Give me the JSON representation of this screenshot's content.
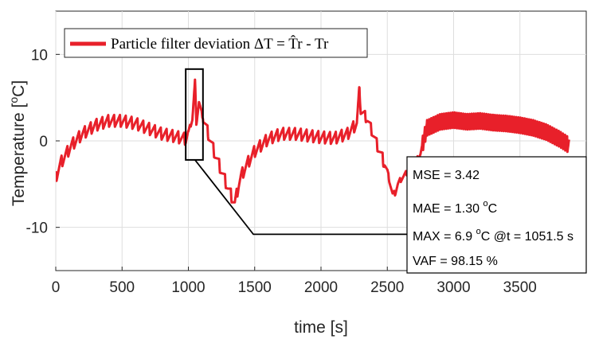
{
  "chart_data": {
    "type": "line",
    "title": "",
    "xlabel": "time [s]",
    "ylabel": "Temperature [",
    "ylabel_unit": "C]",
    "degree_symbol": "o",
    "xlim": [
      0,
      4000
    ],
    "ylim": [
      -15,
      15
    ],
    "xticks": [
      "0",
      "500",
      "1000",
      "1500",
      "2000",
      "2500",
      "3000",
      "3500"
    ],
    "xtick_values": [
      0,
      500,
      1000,
      1500,
      2000,
      2500,
      3000,
      3500
    ],
    "yticks": [
      "10",
      "0",
      "-10"
    ],
    "ytick_values": [
      10,
      0,
      -10
    ],
    "grid": true,
    "series": [
      {
        "name": "Particle filter deviation ΔT = T̂r - Tr",
        "color": "#e8202a",
        "x": [
          0,
          40,
          80,
          120,
          200,
          300,
          400,
          500,
          600,
          700,
          800,
          900,
          980,
          1000,
          1030,
          1050,
          1060,
          1080,
          1100,
          1150,
          1200,
          1250,
          1300,
          1350,
          1380,
          1400,
          1450,
          1500,
          1600,
          1700,
          1800,
          1900,
          2000,
          2100,
          2200,
          2270,
          2290,
          2300,
          2350,
          2400,
          2450,
          2500,
          2540,
          2560,
          2580,
          2600,
          2640,
          2700,
          2750,
          2780,
          2800,
          2900,
          3000,
          3100,
          3200,
          3300,
          3400,
          3500,
          3600,
          3700,
          3800,
          3870
        ],
        "y": [
          -4.2,
          -2.5,
          -1.5,
          -0.5,
          0.8,
          1.8,
          2.3,
          2.3,
          2.0,
          1.4,
          0.8,
          0.5,
          0.2,
          1.0,
          2.5,
          6.9,
          2.0,
          4.5,
          3.2,
          0.8,
          -1.5,
          -3.5,
          -5.5,
          -7.3,
          -5.0,
          -4.0,
          -2.5,
          -1.2,
          0.2,
          0.8,
          0.8,
          0.6,
          0.4,
          0.3,
          0.8,
          2.0,
          6.0,
          3.5,
          2.5,
          0.5,
          -1.5,
          -3.5,
          -6.2,
          -6.0,
          -5.0,
          -4.5,
          -3.8,
          -2.8,
          -1.5,
          0.5,
          1.5,
          2.2,
          2.4,
          2.2,
          2.3,
          2.1,
          2.0,
          1.8,
          1.5,
          1.0,
          0.2,
          -0.5
        ]
      }
    ],
    "zoom_box": {
      "x": [
        980,
        1110
      ],
      "y": [
        -2.2,
        8.3
      ]
    },
    "zoom_connector": {
      "x": [
        1050,
        1490,
        2650
      ],
      "y": [
        -2.2,
        -10.8,
        -10.8
      ]
    },
    "stats": {
      "mse": "MSE = 3.42",
      "mae_prefix": "MAE = 1.30 ",
      "mae_unit": "C",
      "max_prefix": "MAX = 6.9 ",
      "max_suffix": "C @t = 1051.5 s",
      "vaf": "VAF = 98.15 %"
    },
    "legend_position": "top-left"
  }
}
